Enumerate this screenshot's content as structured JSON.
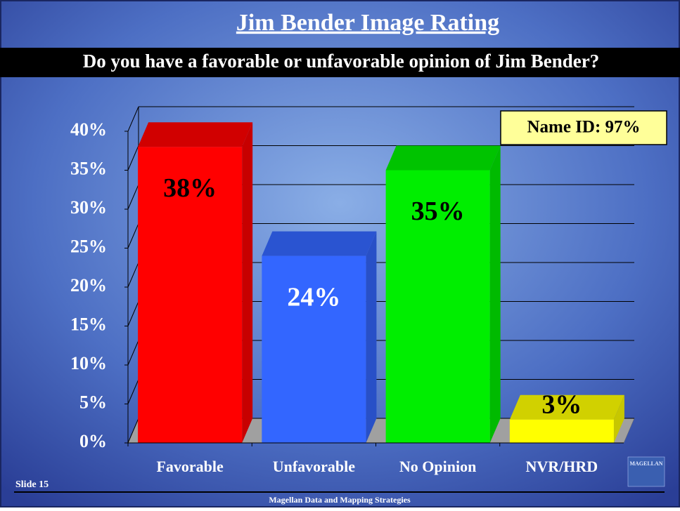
{
  "chart_data": {
    "type": "bar3d",
    "title": "Jim Bender Image Rating",
    "subtitle": "Do you have a favorable or unfavorable opinion of Jim Bender?",
    "categories": [
      "Favorable",
      "Unfavorable",
      "No Opinion",
      "NVR/HRD"
    ],
    "values": [
      38,
      24,
      35,
      3
    ],
    "value_labels": [
      "38%",
      "24%",
      "35%",
      "3%"
    ],
    "colors": [
      "#ff0000",
      "#3366ff",
      "#00ee00",
      "#ffff00"
    ],
    "label_colors": [
      "#000000",
      "#ffffff",
      "#000000",
      "#000000"
    ],
    "ylim": [
      0,
      40
    ],
    "yticks": [
      {
        "value": 0,
        "label": "0%"
      },
      {
        "value": 5,
        "label": "5%"
      },
      {
        "value": 10,
        "label": "10%"
      },
      {
        "value": 15,
        "label": "15%"
      },
      {
        "value": 20,
        "label": "20%"
      },
      {
        "value": 25,
        "label": "25%"
      },
      {
        "value": 30,
        "label": "30%"
      },
      {
        "value": 35,
        "label": "35%"
      },
      {
        "value": 40,
        "label": "40%"
      }
    ],
    "grid": true,
    "annotation": "Name ID: 97%"
  },
  "footer": {
    "slide": "Slide 15",
    "company": "Magellan Data and Mapping Strategies",
    "logo": "MAGELLAN"
  }
}
